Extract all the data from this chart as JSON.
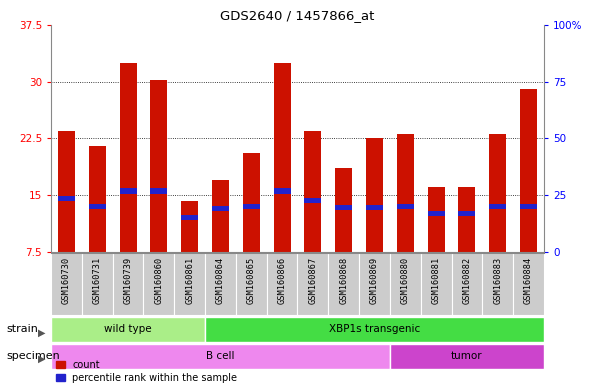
{
  "title": "GDS2640 / 1457866_at",
  "samples": [
    "GSM160730",
    "GSM160731",
    "GSM160739",
    "GSM160860",
    "GSM160861",
    "GSM160864",
    "GSM160865",
    "GSM160866",
    "GSM160867",
    "GSM160868",
    "GSM160869",
    "GSM160880",
    "GSM160881",
    "GSM160882",
    "GSM160883",
    "GSM160884"
  ],
  "counts": [
    23.5,
    21.5,
    32.5,
    30.2,
    14.2,
    17.0,
    20.5,
    32.5,
    23.5,
    18.5,
    22.5,
    23.0,
    16.0,
    16.0,
    23.0,
    29.0
  ],
  "percentile_ranks": [
    14.5,
    13.5,
    15.5,
    15.5,
    12.0,
    13.2,
    13.5,
    15.5,
    14.3,
    13.3,
    13.3,
    13.5,
    12.5,
    12.5,
    13.5,
    13.5
  ],
  "bar_color": "#cc1100",
  "pct_color": "#2222cc",
  "ylim_left": [
    7.5,
    37.5
  ],
  "ylim_right": [
    0,
    100
  ],
  "yticks_left": [
    7.5,
    15.0,
    22.5,
    30.0,
    37.5
  ],
  "yticks_right": [
    0,
    25,
    50,
    75,
    100
  ],
  "ytick_labels_left": [
    "7.5",
    "15",
    "22.5",
    "30",
    "37.5"
  ],
  "ytick_labels_right": [
    "0",
    "25",
    "50",
    "75",
    "100%"
  ],
  "hlines": [
    15.0,
    22.5,
    30.0
  ],
  "strain_groups": [
    {
      "label": "wild type",
      "start": 0,
      "end": 4,
      "color": "#aaee88"
    },
    {
      "label": "XBP1s transgenic",
      "start": 5,
      "end": 15,
      "color": "#44dd44"
    }
  ],
  "specimen_groups": [
    {
      "label": "B cell",
      "start": 0,
      "end": 10,
      "color": "#ee88ee"
    },
    {
      "label": "tumor",
      "start": 11,
      "end": 15,
      "color": "#cc44cc"
    }
  ],
  "legend_count_label": "count",
  "legend_pct_label": "percentile rank within the sample",
  "xlabel_strain": "strain",
  "xlabel_specimen": "specimen",
  "bar_width": 0.55,
  "blue_bar_height": 0.7,
  "tick_box_color": "#cccccc",
  "tick_box_edge": "#ffffff"
}
